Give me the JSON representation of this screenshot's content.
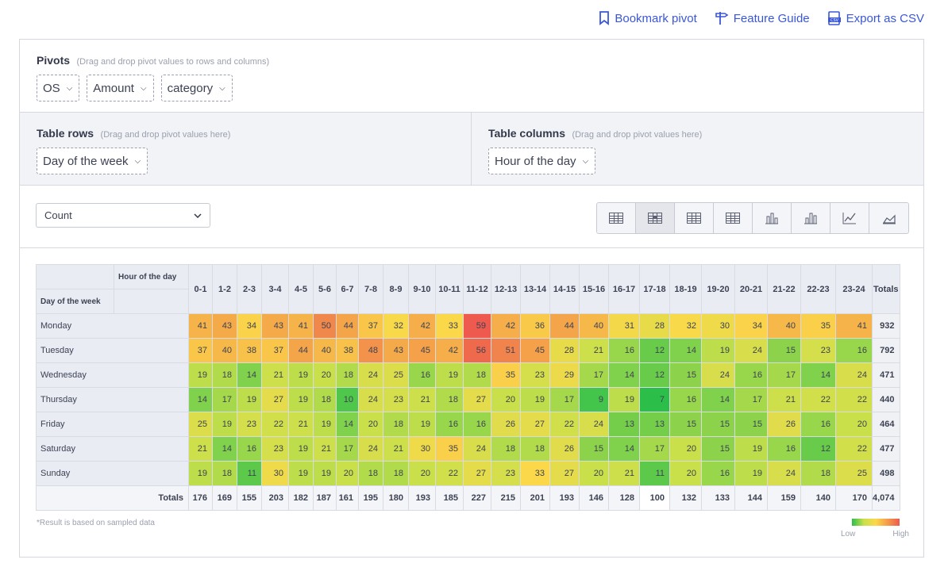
{
  "links": {
    "bookmark": "Bookmark pivot",
    "guide": "Feature Guide",
    "export": "Export as CSV"
  },
  "pivots": {
    "title": "Pivots",
    "hint": "(Drag and drop pivot values to rows and columns)",
    "chips": [
      "OS",
      "Amount",
      "category"
    ]
  },
  "rows": {
    "title": "Table rows",
    "hint": "(Drag and drop pivot values here)",
    "chip": "Day of the week"
  },
  "columns": {
    "title": "Table columns",
    "hint": "(Drag and drop pivot values here)",
    "chip": "Hour of the day"
  },
  "aggregator": {
    "selected": "Count"
  },
  "view_buttons": [
    "table",
    "table-heatmap",
    "table-row-heatmap",
    "table-col-heatmap",
    "stacked-bar-chart",
    "bar-chart",
    "line-chart",
    "area-chart"
  ],
  "active_view": 1,
  "table": {
    "col_field": "Hour of the day",
    "row_field": "Day of the week",
    "columns": [
      "0-1",
      "1-2",
      "2-3",
      "3-4",
      "4-5",
      "5-6",
      "6-7",
      "7-8",
      "8-9",
      "9-10",
      "10-11",
      "11-12",
      "12-13",
      "13-14",
      "14-15",
      "15-16",
      "16-17",
      "17-18",
      "18-19",
      "19-20",
      "20-21",
      "21-22",
      "22-23",
      "23-24"
    ],
    "totals_label": "Totals",
    "rows": [
      {
        "label": "Monday",
        "values": [
          41,
          43,
          34,
          43,
          41,
          50,
          44,
          37,
          32,
          42,
          33,
          59,
          42,
          36,
          44,
          40,
          31,
          28,
          32,
          30,
          34,
          40,
          35,
          41
        ],
        "total": "932"
      },
      {
        "label": "Tuesday",
        "values": [
          37,
          40,
          38,
          37,
          44,
          40,
          38,
          48,
          43,
          45,
          42,
          56,
          51,
          45,
          28,
          21,
          16,
          12,
          14,
          19,
          24,
          15,
          23,
          16
        ],
        "total": "792"
      },
      {
        "label": "Wednesday",
        "values": [
          19,
          18,
          14,
          21,
          19,
          20,
          18,
          24,
          25,
          16,
          19,
          18,
          35,
          23,
          29,
          17,
          14,
          12,
          15,
          24,
          16,
          17,
          14,
          24
        ],
        "total": "471"
      },
      {
        "label": "Thursday",
        "values": [
          14,
          17,
          19,
          27,
          19,
          18,
          10,
          24,
          23,
          21,
          18,
          27,
          20,
          19,
          17,
          9,
          19,
          7,
          16,
          14,
          17,
          21,
          22,
          22
        ],
        "total": "440"
      },
      {
        "label": "Friday",
        "values": [
          25,
          19,
          23,
          22,
          21,
          19,
          14,
          20,
          18,
          19,
          16,
          16,
          26,
          27,
          22,
          24,
          13,
          13,
          15,
          15,
          15,
          26,
          16,
          20
        ],
        "total": "464"
      },
      {
        "label": "Saturday",
        "values": [
          21,
          14,
          16,
          23,
          19,
          21,
          17,
          24,
          21,
          30,
          35,
          24,
          18,
          18,
          26,
          15,
          14,
          17,
          20,
          15,
          19,
          16,
          12,
          22
        ],
        "total": "477"
      },
      {
        "label": "Sunday",
        "values": [
          19,
          18,
          11,
          30,
          19,
          19,
          20,
          18,
          18,
          20,
          22,
          27,
          23,
          33,
          27,
          20,
          21,
          11,
          20,
          16,
          19,
          24,
          18,
          25
        ],
        "total": "498"
      }
    ],
    "col_totals": [
      "176",
      "169",
      "155",
      "203",
      "182",
      "187",
      "161",
      "195",
      "180",
      "193",
      "185",
      "227",
      "215",
      "201",
      "193",
      "146",
      "128",
      "100",
      "132",
      "133",
      "144",
      "159",
      "140",
      "170"
    ],
    "grand_total": "4,074"
  },
  "note": "*Result is based on sampled data",
  "legend": {
    "low": "Low",
    "high": "High"
  }
}
